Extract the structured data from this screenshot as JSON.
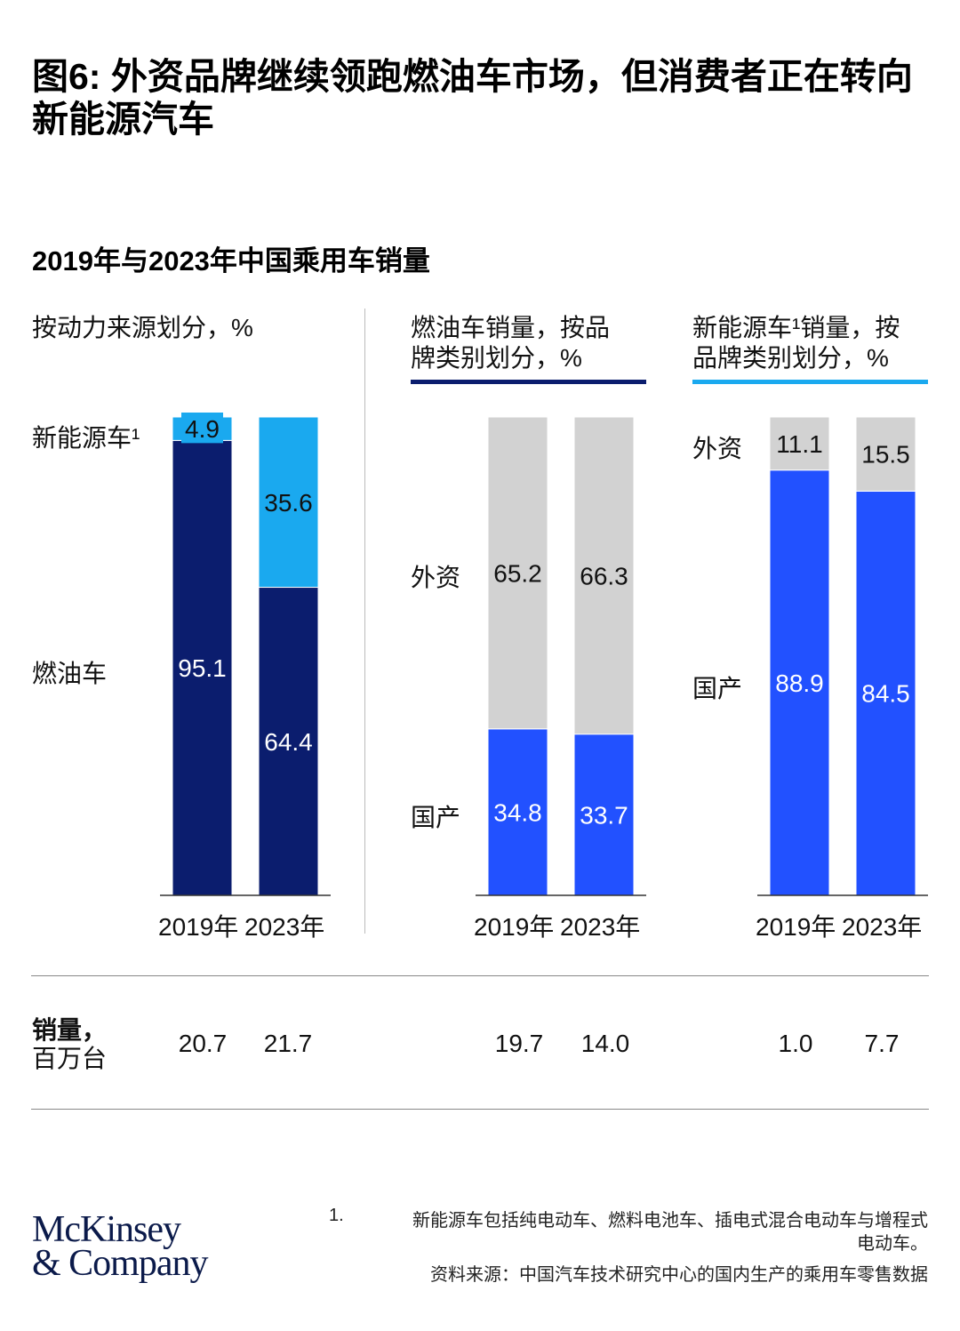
{
  "title": "图6: 外资品牌继续领跑燃油车市场，但消费者正在转向新能源汽车",
  "subtitle": "2019年与2023年中国乘用车销量",
  "colors": {
    "navy": "#0b1d6e",
    "light_blue": "#1aa9ef",
    "gray": "#d2d2d2",
    "blue": "#2251ff"
  },
  "chart_data": [
    {
      "type": "bar",
      "stacked": true,
      "header": "按动力来源划分，%",
      "categories": [
        "2019年",
        "2023年"
      ],
      "series": [
        {
          "name": "燃油车",
          "values": [
            95.1,
            64.4
          ],
          "color": "#0b1d6e"
        },
        {
          "name": "新能源车¹",
          "values": [
            4.9,
            35.6
          ],
          "color": "#1aa9ef"
        }
      ],
      "ylim": [
        0,
        100
      ]
    },
    {
      "type": "bar",
      "stacked": true,
      "header": "燃油车销量，按品牌类别划分，%",
      "header_lines": [
        "燃油车销量，按品",
        "牌类别划分，%"
      ],
      "categories": [
        "2019年",
        "2023年"
      ],
      "series": [
        {
          "name": "国产",
          "values": [
            34.8,
            33.7
          ],
          "color": "#2251ff"
        },
        {
          "name": "外资",
          "values": [
            65.2,
            66.3
          ],
          "color": "#d2d2d2"
        }
      ],
      "ylim": [
        0,
        100
      ]
    },
    {
      "type": "bar",
      "stacked": true,
      "header": "新能源车¹销量，按品牌类别划分，%",
      "header_lines": [
        "新能源车¹销量，按",
        "品牌类别划分，%"
      ],
      "categories": [
        "2019年",
        "2023年"
      ],
      "series": [
        {
          "name": "国产",
          "values": [
            88.9,
            84.5
          ],
          "color": "#2251ff"
        },
        {
          "name": "外资",
          "values": [
            11.1,
            15.5
          ],
          "color": "#d2d2d2"
        }
      ],
      "ylim": [
        0,
        100
      ]
    }
  ],
  "sales": {
    "label_line1": "销量，",
    "label_line2": "百万台",
    "values": [
      "20.7",
      "21.7",
      "19.7",
      "14.0",
      "1.0",
      "7.7"
    ]
  },
  "footnote": {
    "note_number": "1.",
    "note_line1": "新能源车包括纯电动车、燃料电池车、插电式混合电动车与增程式",
    "note_line2": "电动车。",
    "source": "资料来源：中国汽车技术研究中心的国内生产的乘用车零售数据"
  },
  "logo": {
    "line1": "McKinsey",
    "line2": "& Company"
  }
}
